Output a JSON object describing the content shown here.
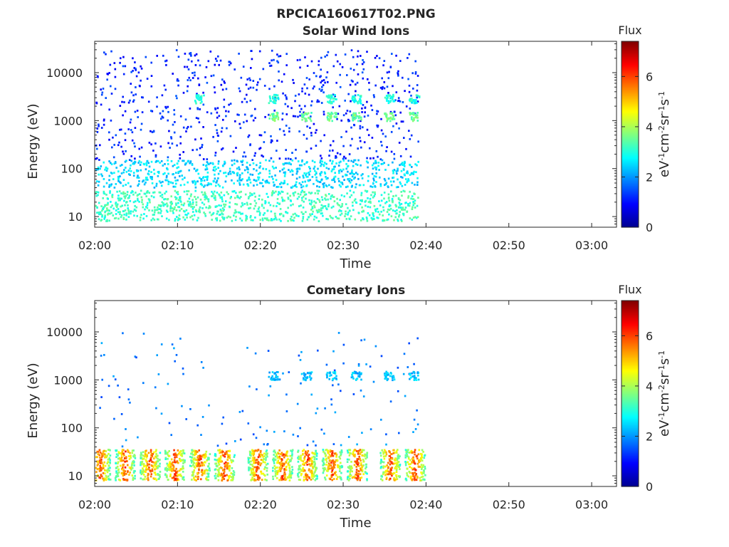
{
  "page": {
    "title": "RPCICA160617T02.PNG"
  },
  "colors": {
    "colormap": [
      "#00008f",
      "#0000ff",
      "#0080ff",
      "#00ffff",
      "#80ff80",
      "#ffff00",
      "#ff8000",
      "#ff0000",
      "#800000"
    ],
    "axis": "#262626",
    "background": "#ffffff"
  },
  "chart_data": [
    {
      "type": "heatmap",
      "title": "Solar Wind Ions",
      "xlabel": "Time",
      "ylabel": "Energy (eV)",
      "yscale": "log",
      "xlim": [
        "02:00",
        "03:03"
      ],
      "ylim": [
        6,
        45000
      ],
      "x_ticks": [
        "02:00",
        "02:10",
        "02:20",
        "02:30",
        "02:40",
        "02:50",
        "03:00"
      ],
      "y_ticks": [
        "10",
        "100",
        "1000",
        "10000"
      ],
      "colorbar": {
        "title": "Flux",
        "label": "eV-1cm-2sr-1s-1",
        "range": [
          0,
          7.4
        ],
        "ticks": [
          "0",
          "2",
          "4",
          "6"
        ]
      },
      "data_time_range": [
        "02:00",
        "02:39"
      ],
      "grid": false,
      "legend": "none",
      "features": [
        {
          "description": "scattered low-flux counts",
          "energy_range_eV": [
            150,
            30000
          ],
          "flux": 1.2
        },
        {
          "description": "scattered counts",
          "energy_range_eV": [
            40,
            150
          ],
          "flux": 2.5
        },
        {
          "description": "low-energy band",
          "energy_range_eV": [
            8,
            35
          ],
          "flux": 3.2
        },
        {
          "description": "periodic proton peak",
          "energy_eV": 1200,
          "times": [
            "02:21",
            "02:25",
            "02:28",
            "02:31",
            "02:35",
            "02:38"
          ],
          "flux": 3.4
        },
        {
          "description": "periodic alpha peak",
          "energy_eV": 2800,
          "times": [
            "02:12",
            "02:21",
            "02:28",
            "02:31",
            "02:35",
            "02:38"
          ],
          "flux": 2.8
        }
      ]
    },
    {
      "type": "heatmap",
      "title": "Cometary Ions",
      "xlabel": "Time",
      "ylabel": "Energy (eV)",
      "yscale": "log",
      "xlim": [
        "02:00",
        "03:03"
      ],
      "ylim": [
        6,
        45000
      ],
      "x_ticks": [
        "02:00",
        "02:10",
        "02:20",
        "02:30",
        "02:40",
        "02:50",
        "03:00"
      ],
      "y_ticks": [
        "10",
        "100",
        "1000",
        "10000"
      ],
      "colorbar": {
        "title": "Flux",
        "label": "eV-1cm-2sr-1s-1",
        "range": [
          0,
          7.4
        ],
        "ticks": [
          "0",
          "2",
          "4",
          "6"
        ]
      },
      "data_time_range": [
        "02:00",
        "02:39"
      ],
      "grid": false,
      "legend": "none",
      "features": [
        {
          "description": "periodic low-energy bursts",
          "energy_range_eV": [
            8,
            35
          ],
          "times": [
            "02:00",
            "02:03",
            "02:06",
            "02:09",
            "02:12",
            "02:15",
            "02:19",
            "02:22",
            "02:25",
            "02:28",
            "02:31",
            "02:35",
            "02:38"
          ],
          "flux": 5.5
        },
        {
          "description": "sparse counts",
          "energy_range_eV": [
            40,
            10000
          ],
          "flux": 1.8
        },
        {
          "description": "periodic peak",
          "energy_eV": 1200,
          "times": [
            "02:21",
            "02:25",
            "02:28",
            "02:31",
            "02:35",
            "02:38"
          ],
          "flux": 2.2
        }
      ]
    }
  ]
}
